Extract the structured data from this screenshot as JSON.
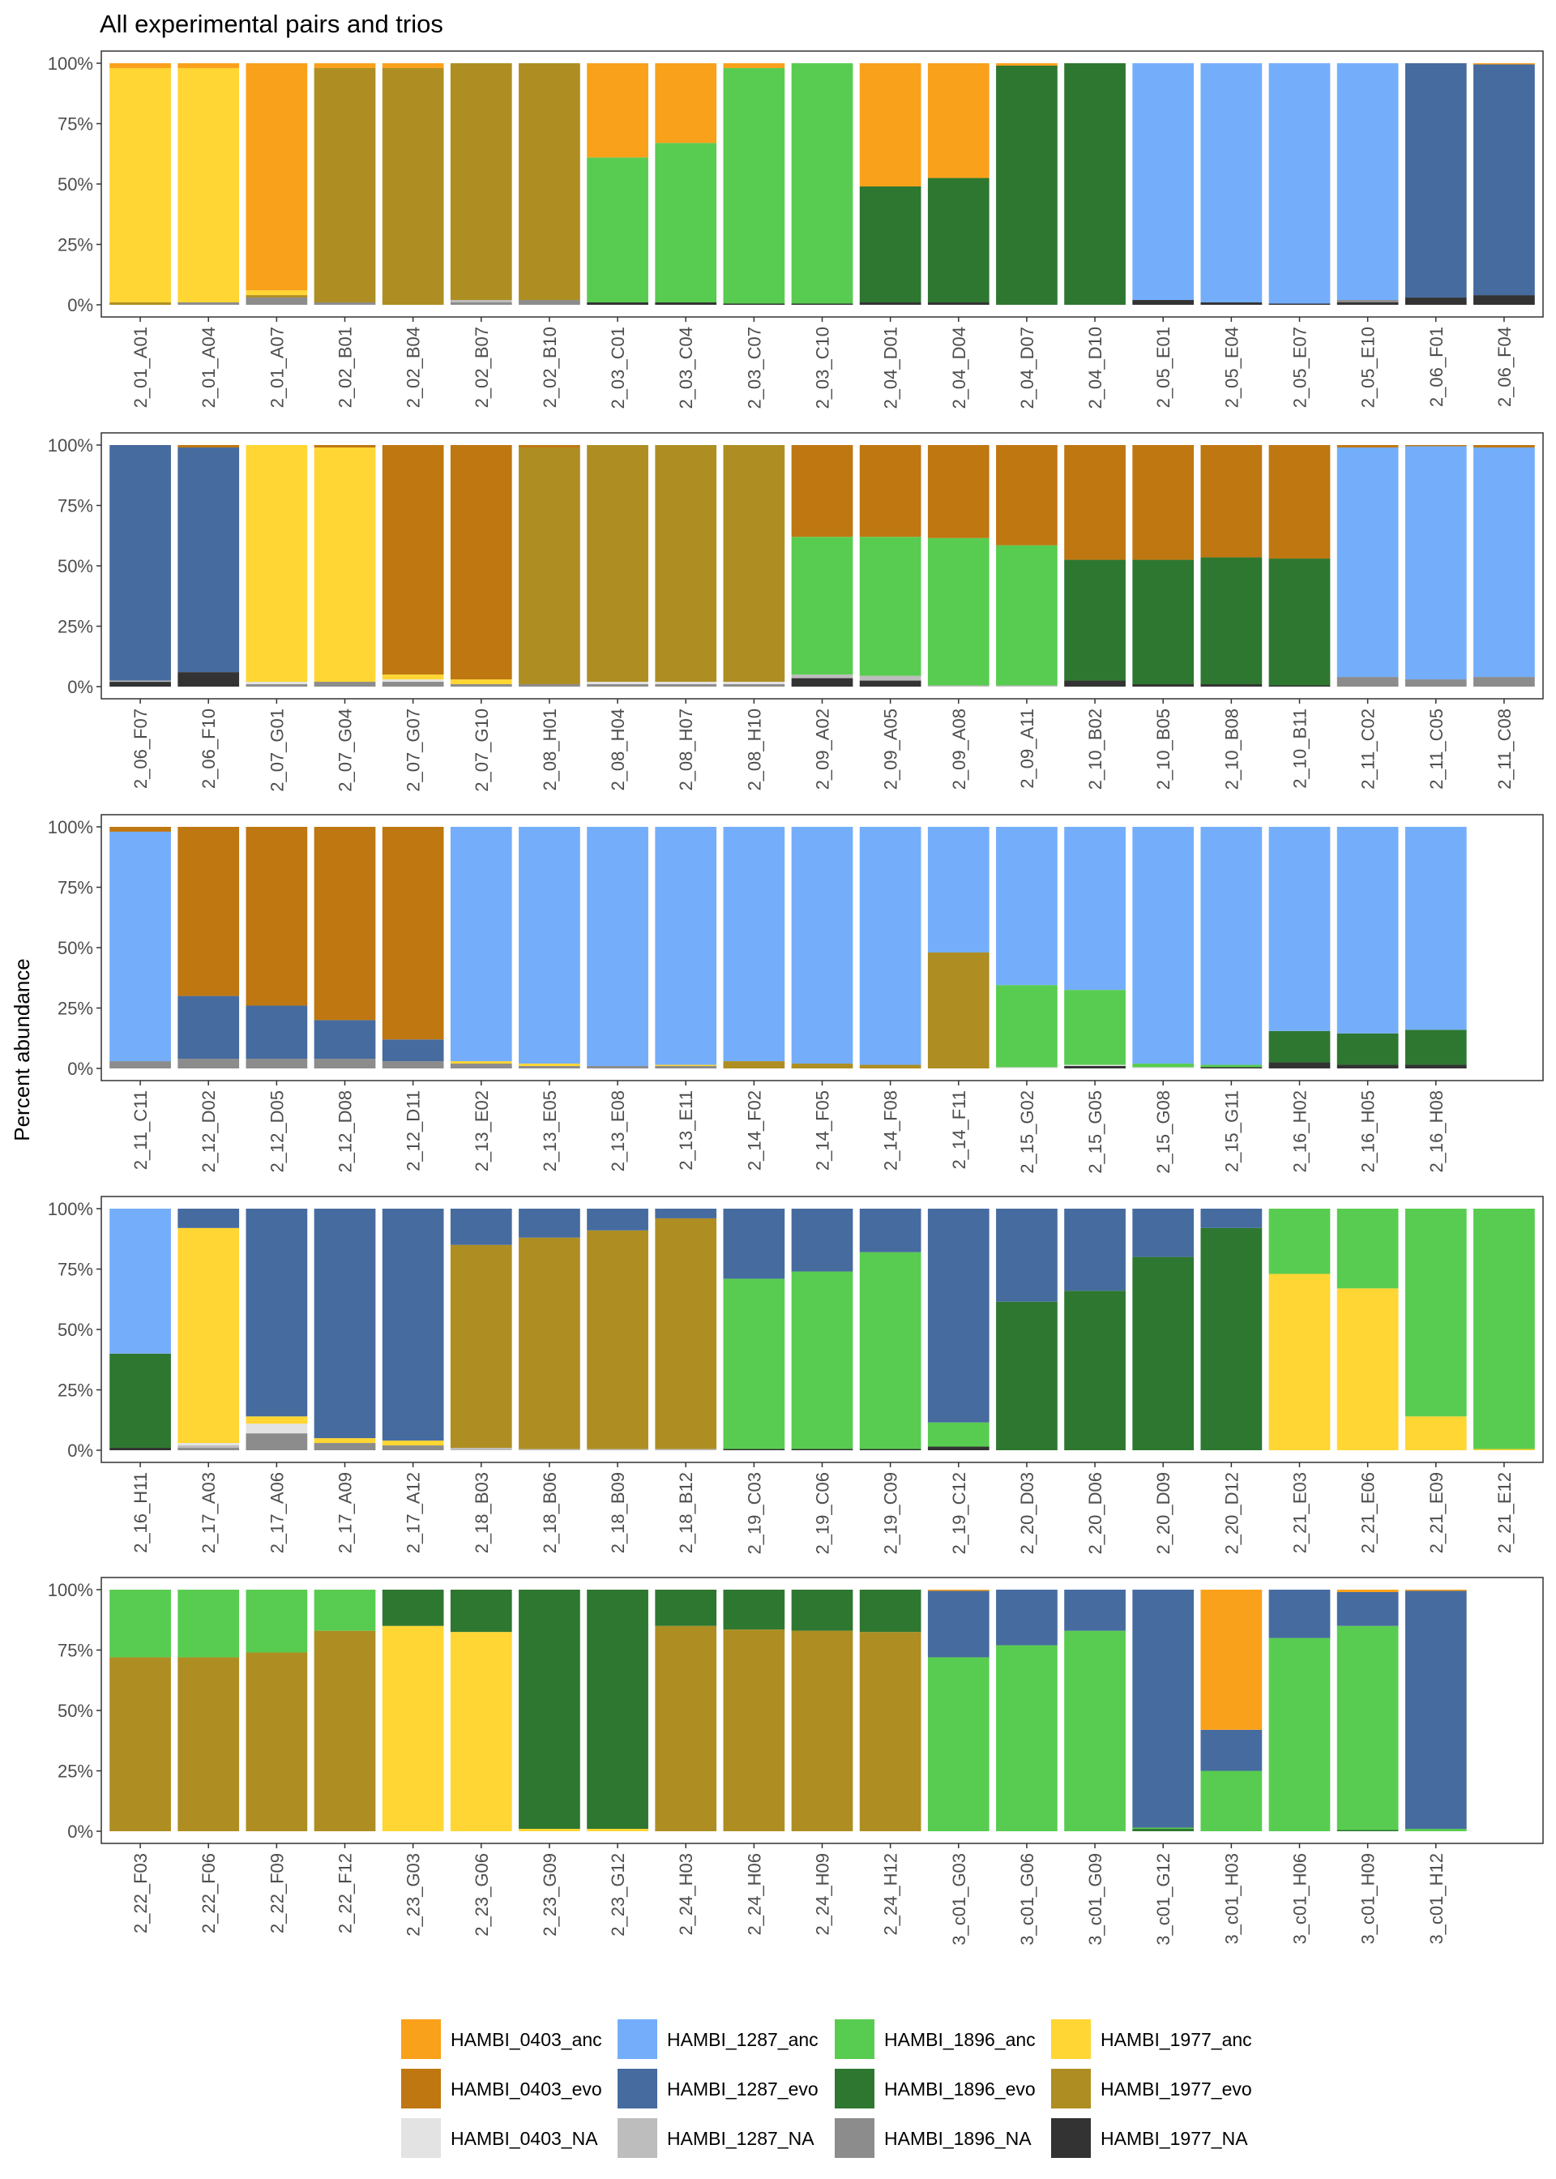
{
  "chart_data": {
    "type": "bar",
    "stacked": true,
    "title": "All experimental pairs and trios",
    "ylabel": "Percent abundance",
    "xlabel": "",
    "ylim": [
      0,
      100
    ],
    "yticks": [
      "0%",
      "25%",
      "50%",
      "75%",
      "100%"
    ],
    "legend_position": "bottom",
    "stack_order": [
      "HAMBI_1977_NA",
      "HAMBI_1896_NA",
      "HAMBI_1287_NA",
      "HAMBI_0403_NA",
      "HAMBI_1977_evo",
      "HAMBI_1977_anc",
      "HAMBI_1896_evo",
      "HAMBI_1896_anc",
      "HAMBI_1287_evo",
      "HAMBI_1287_anc",
      "HAMBI_0403_evo",
      "HAMBI_0403_anc"
    ],
    "legend": [
      {
        "name": "HAMBI_0403_anc",
        "color": "#F9A11B"
      },
      {
        "name": "HAMBI_1287_anc",
        "color": "#74AEFB"
      },
      {
        "name": "HAMBI_1896_anc",
        "color": "#58CC50"
      },
      {
        "name": "HAMBI_1977_anc",
        "color": "#FFD633"
      },
      {
        "name": "HAMBI_0403_evo",
        "color": "#BF7711"
      },
      {
        "name": "HAMBI_1287_evo",
        "color": "#466B9F"
      },
      {
        "name": "HAMBI_1896_evo",
        "color": "#2E7730"
      },
      {
        "name": "HAMBI_1977_evo",
        "color": "#AE8E22"
      },
      {
        "name": "HAMBI_0403_NA",
        "color": "#E3E3E3"
      },
      {
        "name": "HAMBI_1287_NA",
        "color": "#BDBDBD"
      },
      {
        "name": "HAMBI_1896_NA",
        "color": "#8C8C8C"
      },
      {
        "name": "HAMBI_1977_NA",
        "color": "#333333"
      }
    ],
    "panels": [
      {
        "categories": [
          "2_01_A01",
          "2_01_A04",
          "2_01_A07",
          "2_02_B01",
          "2_02_B04",
          "2_02_B07",
          "2_02_B10",
          "2_03_C01",
          "2_03_C04",
          "2_03_C07",
          "2_03_C10",
          "2_04_D01",
          "2_04_D04",
          "2_04_D07",
          "2_04_D10",
          "2_05_E01",
          "2_05_E04",
          "2_05_E07",
          "2_05_E10",
          "2_06_F01",
          "2_06_F04"
        ],
        "bars": [
          {
            "HAMBI_1977_anc": 97,
            "HAMBI_1977_evo": 1,
            "HAMBI_0403_anc": 2
          },
          {
            "HAMBI_1977_anc": 97,
            "HAMBI_1896_NA": 1,
            "HAMBI_0403_anc": 2
          },
          {
            "HAMBI_1977_anc": 2,
            "HAMBI_1977_evo": 1,
            "HAMBI_1896_NA": 3,
            "HAMBI_0403_anc": 94
          },
          {
            "HAMBI_1977_evo": 97,
            "HAMBI_1896_NA": 1,
            "HAMBI_0403_anc": 2
          },
          {
            "HAMBI_1977_evo": 98,
            "HAMBI_0403_anc": 2
          },
          {
            "HAMBI_1977_evo": 98,
            "HAMBI_1896_NA": 1,
            "HAMBI_1287_NA": 1
          },
          {
            "HAMBI_1977_evo": 98,
            "HAMBI_1896_NA": 2
          },
          {
            "HAMBI_1977_NA": 1,
            "HAMBI_1896_anc": 60,
            "HAMBI_0403_anc": 39
          },
          {
            "HAMBI_1977_NA": 1,
            "HAMBI_1896_anc": 66,
            "HAMBI_0403_anc": 33
          },
          {
            "HAMBI_1977_NA": 0.5,
            "HAMBI_1896_anc": 97.5,
            "HAMBI_0403_anc": 2
          },
          {
            "HAMBI_1977_NA": 0.5,
            "HAMBI_1896_anc": 99.5
          },
          {
            "HAMBI_1977_NA": 1,
            "HAMBI_1896_evo": 48,
            "HAMBI_0403_anc": 51
          },
          {
            "HAMBI_1977_NA": 1,
            "HAMBI_1896_evo": 51.5,
            "HAMBI_0403_anc": 47.5
          },
          {
            "HAMBI_1896_evo": 99,
            "HAMBI_0403_anc": 1
          },
          {
            "HAMBI_1896_evo": 100
          },
          {
            "HAMBI_1977_NA": 2,
            "HAMBI_1287_anc": 98
          },
          {
            "HAMBI_1977_NA": 1,
            "HAMBI_1287_anc": 99
          },
          {
            "HAMBI_1977_NA": 0.5,
            "HAMBI_1287_anc": 99.5
          },
          {
            "HAMBI_1977_NA": 1,
            "HAMBI_1896_NA": 1,
            "HAMBI_1287_anc": 98
          },
          {
            "HAMBI_1977_NA": 3,
            "HAMBI_1287_evo": 97
          },
          {
            "HAMBI_1977_NA": 4,
            "HAMBI_1287_evo": 95.5,
            "HAMBI_0403_anc": 0.5
          }
        ]
      },
      {
        "categories": [
          "2_06_F07",
          "2_06_F10",
          "2_07_G01",
          "2_07_G04",
          "2_07_G07",
          "2_07_G10",
          "2_08_H01",
          "2_08_H04",
          "2_08_H07",
          "2_08_H10",
          "2_09_A02",
          "2_09_A05",
          "2_09_A08",
          "2_09_A11",
          "2_10_B02",
          "2_10_B05",
          "2_10_B08",
          "2_10_B11",
          "2_11_C02",
          "2_11_C05",
          "2_11_C08"
        ],
        "bars": [
          {
            "HAMBI_1977_NA": 2,
            "HAMBI_1287_evo": 97.5,
            "HAMBI_1287_NA": 0.5
          },
          {
            "HAMBI_1977_NA": 6,
            "HAMBI_1287_evo": 93,
            "HAMBI_0403_evo": 1
          },
          {
            "HAMBI_1977_anc": 98,
            "HAMBI_1896_NA": 1,
            "HAMBI_0403_NA": 1
          },
          {
            "HAMBI_1977_anc": 97,
            "HAMBI_1896_NA": 2,
            "HAMBI_0403_evo": 1
          },
          {
            "HAMBI_1977_anc": 2,
            "HAMBI_1896_NA": 2,
            "HAMBI_0403_NA": 1,
            "HAMBI_0403_evo": 95
          },
          {
            "HAMBI_1977_anc": 2,
            "HAMBI_1896_NA": 1,
            "HAMBI_0403_evo": 97
          },
          {
            "HAMBI_1977_evo": 98,
            "HAMBI_1896_NA": 1,
            "HAMBI_0403_evo": 1
          },
          {
            "HAMBI_1977_evo": 98,
            "HAMBI_1896_NA": 1,
            "HAMBI_0403_NA": 1
          },
          {
            "HAMBI_1977_evo": 98,
            "HAMBI_1896_NA": 1,
            "HAMBI_0403_NA": 1
          },
          {
            "HAMBI_1977_evo": 98,
            "HAMBI_1896_NA": 1,
            "HAMBI_0403_NA": 1
          },
          {
            "HAMBI_1977_NA": 3.5,
            "HAMBI_1896_anc": 57,
            "HAMBI_1287_NA": 1.5,
            "HAMBI_0403_evo": 38
          },
          {
            "HAMBI_1977_NA": 2.5,
            "HAMBI_1896_anc": 57.5,
            "HAMBI_1287_NA": 2,
            "HAMBI_0403_evo": 38
          },
          {
            "HAMBI_1896_anc": 61,
            "HAMBI_1287_NA": 0.5,
            "HAMBI_0403_evo": 38.5
          },
          {
            "HAMBI_1896_anc": 58,
            "HAMBI_1287_NA": 0.5,
            "HAMBI_0403_evo": 41.5
          },
          {
            "HAMBI_1977_NA": 2.5,
            "HAMBI_1896_evo": 50,
            "HAMBI_0403_evo": 47.5
          },
          {
            "HAMBI_1977_NA": 1,
            "HAMBI_1896_evo": 51.5,
            "HAMBI_0403_evo": 47.5
          },
          {
            "HAMBI_1977_NA": 1,
            "HAMBI_1896_evo": 52.5,
            "HAMBI_0403_evo": 46.5
          },
          {
            "HAMBI_1977_NA": 0.5,
            "HAMBI_1896_evo": 52.5,
            "HAMBI_0403_evo": 47
          },
          {
            "HAMBI_1896_NA": 4,
            "HAMBI_1287_anc": 95,
            "HAMBI_0403_evo": 1
          },
          {
            "HAMBI_1896_NA": 3,
            "HAMBI_1287_anc": 96.5,
            "HAMBI_0403_evo": 0.5
          },
          {
            "HAMBI_1896_NA": 4,
            "HAMBI_1287_anc": 95,
            "HAMBI_0403_evo": 1
          }
        ]
      },
      {
        "categories": [
          "2_11_C11",
          "2_12_D02",
          "2_12_D05",
          "2_12_D08",
          "2_12_D11",
          "2_13_E02",
          "2_13_E05",
          "2_13_E08",
          "2_13_E11",
          "2_14_F02",
          "2_14_F05",
          "2_14_F08",
          "2_14_F11",
          "2_15_G02",
          "2_15_G05",
          "2_15_G08",
          "2_15_G11",
          "2_16_H02",
          "2_16_H05",
          "2_16_H08"
        ],
        "bars": [
          {
            "HAMBI_1896_NA": 3,
            "HAMBI_1287_anc": 95,
            "HAMBI_0403_evo": 2
          },
          {
            "HAMBI_1896_NA": 4,
            "HAMBI_1287_evo": 26,
            "HAMBI_0403_evo": 70
          },
          {
            "HAMBI_1896_NA": 4,
            "HAMBI_1287_evo": 22,
            "HAMBI_0403_evo": 74
          },
          {
            "HAMBI_1896_NA": 4,
            "HAMBI_1287_evo": 16,
            "HAMBI_0403_evo": 80
          },
          {
            "HAMBI_1896_NA": 3,
            "HAMBI_1287_evo": 9,
            "HAMBI_0403_evo": 88
          },
          {
            "HAMBI_1977_anc": 1,
            "HAMBI_1896_NA": 2,
            "HAMBI_1287_anc": 97
          },
          {
            "HAMBI_1977_anc": 1,
            "HAMBI_1896_NA": 1,
            "HAMBI_1287_anc": 98
          },
          {
            "HAMBI_1896_NA": 1,
            "HAMBI_1287_anc": 99
          },
          {
            "HAMBI_1977_anc": 0.5,
            "HAMBI_1896_NA": 1,
            "HAMBI_1287_anc": 98.5
          },
          {
            "HAMBI_1977_evo": 3,
            "HAMBI_1287_anc": 97
          },
          {
            "HAMBI_1977_evo": 2,
            "HAMBI_1287_anc": 98
          },
          {
            "HAMBI_1977_evo": 1.5,
            "HAMBI_1287_anc": 98.5
          },
          {
            "HAMBI_1977_evo": 48,
            "HAMBI_1287_anc": 52
          },
          {
            "HAMBI_1896_anc": 34,
            "HAMBI_1287_anc": 65.5,
            "HAMBI_0403_NA": 0.5
          },
          {
            "HAMBI_1977_NA": 1,
            "HAMBI_1896_anc": 31,
            "HAMBI_1287_anc": 67.5,
            "HAMBI_0403_NA": 0.5
          },
          {
            "HAMBI_1896_anc": 1.5,
            "HAMBI_1287_anc": 98,
            "HAMBI_0403_NA": 0.5
          },
          {
            "HAMBI_1977_NA": 0.5,
            "HAMBI_1896_anc": 1,
            "HAMBI_1287_anc": 98.5
          },
          {
            "HAMBI_1977_NA": 2.5,
            "HAMBI_1896_evo": 13,
            "HAMBI_1287_anc": 84.5
          },
          {
            "HAMBI_1977_NA": 1.5,
            "HAMBI_1896_evo": 13,
            "HAMBI_1287_anc": 85.5
          },
          {
            "HAMBI_1977_NA": 1.5,
            "HAMBI_1896_evo": 14.5,
            "HAMBI_1287_anc": 84
          }
        ]
      },
      {
        "categories": [
          "2_16_H11",
          "2_17_A03",
          "2_17_A06",
          "2_17_A09",
          "2_17_A12",
          "2_18_B03",
          "2_18_B06",
          "2_18_B09",
          "2_18_B12",
          "2_19_C03",
          "2_19_C06",
          "2_19_C09",
          "2_19_C12",
          "2_20_D03",
          "2_20_D06",
          "2_20_D09",
          "2_20_D12",
          "2_21_E03",
          "2_21_E06",
          "2_21_E09",
          "2_21_E12"
        ],
        "bars": [
          {
            "HAMBI_1977_NA": 1,
            "HAMBI_1896_evo": 39,
            "HAMBI_1287_anc": 60
          },
          {
            "HAMBI_1977_anc": 89,
            "HAMBI_1896_NA": 1,
            "HAMBI_1287_NA": 1,
            "HAMBI_1287_evo": 8,
            "HAMBI_0403_NA": 1
          },
          {
            "HAMBI_1977_anc": 3,
            "HAMBI_1896_NA": 7,
            "HAMBI_1287_evo": 86,
            "HAMBI_0403_NA": 4
          },
          {
            "HAMBI_1977_anc": 2,
            "HAMBI_1896_NA": 3,
            "HAMBI_1287_evo": 95
          },
          {
            "HAMBI_1977_anc": 2,
            "HAMBI_1896_NA": 2,
            "HAMBI_1287_evo": 96
          },
          {
            "HAMBI_1977_evo": 84,
            "HAMBI_1287_NA": 1,
            "HAMBI_1287_evo": 15
          },
          {
            "HAMBI_1977_evo": 87.5,
            "HAMBI_1287_NA": 0.5,
            "HAMBI_1287_evo": 12
          },
          {
            "HAMBI_1977_evo": 90.5,
            "HAMBI_1287_NA": 0.5,
            "HAMBI_1287_evo": 9
          },
          {
            "HAMBI_1977_evo": 95.5,
            "HAMBI_1287_NA": 0.5,
            "HAMBI_1287_evo": 4
          },
          {
            "HAMBI_1977_NA": 0.5,
            "HAMBI_1896_anc": 70.5,
            "HAMBI_1287_evo": 29
          },
          {
            "HAMBI_1977_NA": 0.5,
            "HAMBI_1896_anc": 73.5,
            "HAMBI_1287_evo": 26
          },
          {
            "HAMBI_1977_NA": 0.5,
            "HAMBI_1896_anc": 81.5,
            "HAMBI_1287_evo": 18
          },
          {
            "HAMBI_1977_NA": 1.5,
            "HAMBI_1896_anc": 10,
            "HAMBI_1287_evo": 88.5
          },
          {
            "HAMBI_1896_evo": 61.5,
            "HAMBI_1287_evo": 38.5
          },
          {
            "HAMBI_1896_evo": 66,
            "HAMBI_1287_evo": 34
          },
          {
            "HAMBI_1896_evo": 80,
            "HAMBI_1287_evo": 20
          },
          {
            "HAMBI_1896_evo": 92,
            "HAMBI_1287_evo": 8
          },
          {
            "HAMBI_1977_anc": 73,
            "HAMBI_1896_anc": 27
          },
          {
            "HAMBI_1977_anc": 67,
            "HAMBI_1896_anc": 33
          },
          {
            "HAMBI_1977_anc": 14,
            "HAMBI_1896_anc": 86
          },
          {
            "HAMBI_1977_anc": 0.5,
            "HAMBI_1896_anc": 99.5
          }
        ]
      },
      {
        "categories": [
          "2_22_F03",
          "2_22_F06",
          "2_22_F09",
          "2_22_F12",
          "2_23_G03",
          "2_23_G06",
          "2_23_G09",
          "2_23_G12",
          "2_24_H03",
          "2_24_H06",
          "2_24_H09",
          "2_24_H12",
          "3_c01_G03",
          "3_c01_G06",
          "3_c01_G09",
          "3_c01_G12",
          "3_c01_H03",
          "3_c01_H06",
          "3_c01_H09",
          "3_c01_H12"
        ],
        "bars": [
          {
            "HAMBI_1977_evo": 72,
            "HAMBI_1896_anc": 28
          },
          {
            "HAMBI_1977_evo": 72,
            "HAMBI_1896_anc": 28
          },
          {
            "HAMBI_1977_evo": 74,
            "HAMBI_1896_anc": 26
          },
          {
            "HAMBI_1977_evo": 83,
            "HAMBI_1896_anc": 17
          },
          {
            "HAMBI_1977_anc": 85,
            "HAMBI_1896_evo": 15
          },
          {
            "HAMBI_1977_anc": 82.5,
            "HAMBI_1896_evo": 17.5
          },
          {
            "HAMBI_1977_anc": 1,
            "HAMBI_1896_evo": 99
          },
          {
            "HAMBI_1977_anc": 1,
            "HAMBI_1896_evo": 99
          },
          {
            "HAMBI_1977_evo": 85,
            "HAMBI_1896_evo": 15
          },
          {
            "HAMBI_1977_evo": 83.5,
            "HAMBI_1896_evo": 16.5
          },
          {
            "HAMBI_1977_evo": 83,
            "HAMBI_1896_evo": 17
          },
          {
            "HAMBI_1977_evo": 82.5,
            "HAMBI_1896_evo": 17.5
          },
          {
            "HAMBI_1896_anc": 72,
            "HAMBI_1287_evo": 27.5,
            "HAMBI_0403_anc": 0.5
          },
          {
            "HAMBI_1896_anc": 77,
            "HAMBI_1287_evo": 23
          },
          {
            "HAMBI_1896_anc": 83,
            "HAMBI_1287_evo": 17
          },
          {
            "HAMBI_1896_evo": 1,
            "HAMBI_1896_anc": 0.5,
            "HAMBI_1287_evo": 98.5
          },
          {
            "HAMBI_1896_anc": 25,
            "HAMBI_1287_evo": 17,
            "HAMBI_0403_anc": 58
          },
          {
            "HAMBI_1896_anc": 80,
            "HAMBI_1287_evo": 20
          },
          {
            "HAMBI_1896_evo": 0.5,
            "HAMBI_1896_anc": 84.5,
            "HAMBI_1287_evo": 14,
            "HAMBI_0403_anc": 1
          },
          {
            "HAMBI_1896_anc": 1,
            "HAMBI_1287_evo": 98.5,
            "HAMBI_0403_anc": 0.5
          }
        ]
      }
    ]
  }
}
